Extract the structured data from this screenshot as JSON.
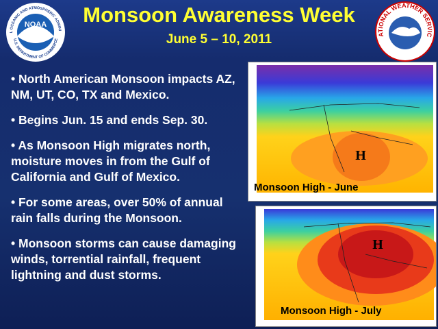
{
  "header": {
    "title": "Monsoon Awareness Week",
    "subtitle": "June 5 – 10, 2011"
  },
  "logos": {
    "noaa": {
      "label": "NOAA",
      "ring_top": "NATIONAL OCEANIC AND ATMOSPHERIC ADMINISTRATION",
      "ring_bottom": "U.S. DEPARTMENT OF COMMERCE"
    },
    "nws": {
      "ring": "NATIONAL WEATHER SERVICE"
    }
  },
  "bullets": [
    "• North American Monsoon impacts AZ, NM, UT, CO, TX and Mexico.",
    "• Begins Jun. 15 and ends Sep. 30.",
    "• As Monsoon High migrates north, moisture moves in from the Gulf of California and Gulf of Mexico.",
    "• For some areas, over 50% of annual rain falls during the Monsoon.",
    "• Monsoon storms can cause damaging winds, torrential rainfall, frequent lightning and dust storms."
  ],
  "maps": [
    {
      "label": "Monsoon High - June",
      "marker": "H"
    },
    {
      "label": "Monsoon High - July",
      "marker": "H"
    }
  ]
}
